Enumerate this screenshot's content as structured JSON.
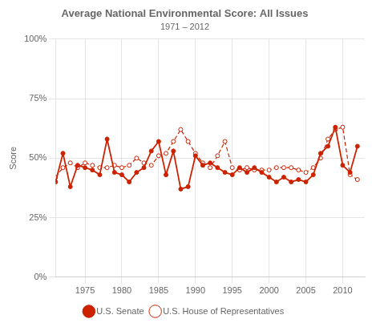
{
  "chart_data": {
    "type": "line",
    "title": "Average National Environmental Score: All Issues",
    "subtitle": "1971 – 2012",
    "y_label": "Score",
    "x": [
      1971,
      1972,
      1973,
      1974,
      1975,
      1976,
      1977,
      1978,
      1979,
      1980,
      1981,
      1982,
      1983,
      1984,
      1985,
      1986,
      1987,
      1988,
      1989,
      1990,
      1991,
      1992,
      1993,
      1994,
      1995,
      1996,
      1997,
      1998,
      1999,
      2000,
      2001,
      2002,
      2003,
      2004,
      2005,
      2006,
      2007,
      2008,
      2009,
      2010,
      2011,
      2012
    ],
    "series": [
      {
        "name": "U.S. Senate",
        "color": "#cc2200",
        "line_style": "solid",
        "marker": "circle",
        "values": [
          40,
          52,
          38,
          47,
          46,
          45,
          43,
          58,
          44,
          43,
          40,
          44,
          46,
          53,
          57,
          43,
          53,
          37,
          38,
          51,
          47,
          48,
          46,
          44,
          43,
          46,
          44,
          46,
          44,
          42,
          40,
          42,
          40,
          41,
          40,
          43,
          52,
          55,
          63,
          47,
          44,
          55
        ]
      },
      {
        "name": "U.S. House of Representatives",
        "color": "#cc2200",
        "line_style": "dashed",
        "marker": "open_circle",
        "values": [
          42,
          46,
          48,
          46,
          48,
          47,
          46,
          46,
          47,
          46,
          47,
          50,
          48,
          47,
          51,
          52,
          57,
          62,
          57,
          52,
          48,
          46,
          51,
          57,
          46,
          45,
          46,
          45,
          45,
          45,
          46,
          46,
          46,
          45,
          44,
          46,
          50,
          58,
          62,
          63,
          43,
          41
        ]
      }
    ],
    "xlim": [
      1971,
      2013
    ],
    "xticks": [
      1975,
      1980,
      1985,
      1990,
      1995,
      2000,
      2005,
      2010
    ],
    "ylim": [
      0,
      100
    ],
    "yticks": [
      {
        "value": 0,
        "label": "0%"
      },
      {
        "value": 25,
        "label": "25%"
      },
      {
        "value": 50,
        "label": "50%"
      },
      {
        "value": 75,
        "label": "75%"
      },
      {
        "value": 100,
        "label": "100%"
      }
    ],
    "grid": true,
    "legend": "bottom"
  }
}
